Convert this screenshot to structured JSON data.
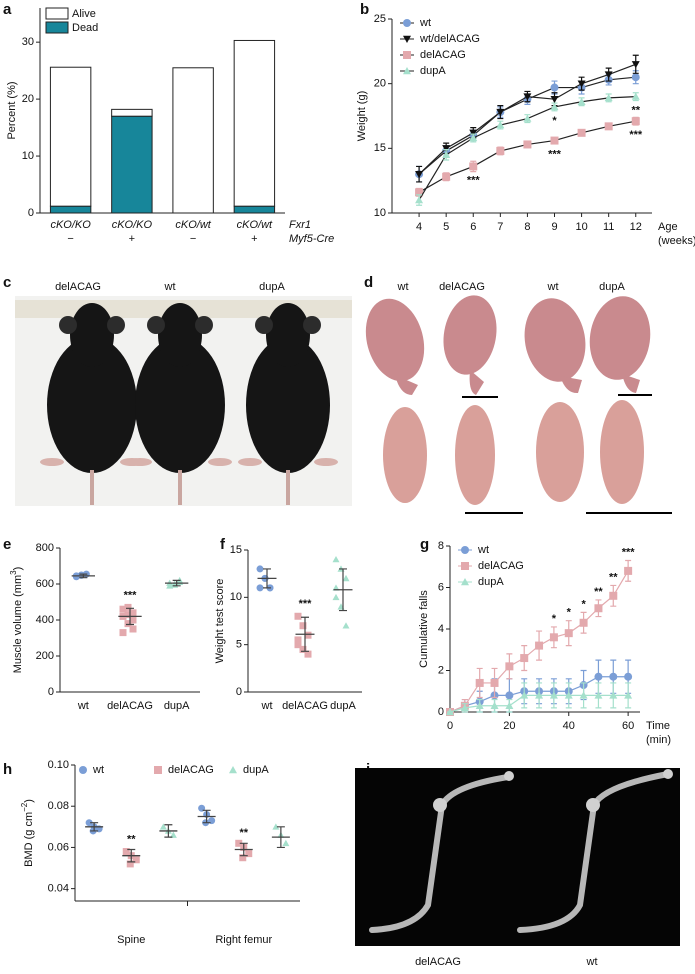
{
  "chart_data": [
    {
      "letter": "a",
      "type": "bar",
      "stacked": true,
      "ylabel": "Percent (%)",
      "categories": [
        "cKO/KO",
        "cKO/KO",
        "cKO/wt",
        "cKO/wt"
      ],
      "categories2": [
        "−",
        "+",
        "−",
        "+"
      ],
      "category_titles": [
        "Fxr1",
        "Myf5-Cre"
      ],
      "series": [
        {
          "name": "Alive",
          "color": "#ffffff",
          "values": [
            24.4,
            1.2,
            25.5,
            29.1
          ]
        },
        {
          "name": "Dead",
          "color": "#17869a",
          "values": [
            1.2,
            17,
            0,
            1.2
          ]
        }
      ],
      "ylim": [
        0,
        36
      ],
      "yticks": [
        0,
        10,
        20,
        30
      ],
      "legend": "upper left"
    },
    {
      "letter": "b",
      "type": "line",
      "ylabel": "Weight (g)",
      "xlabel": [
        "Age",
        "(weeks)"
      ],
      "x": [
        4,
        5,
        6,
        7,
        8,
        9,
        10,
        11,
        12
      ],
      "xlim": [
        3,
        12.6
      ],
      "xticks": [
        4,
        5,
        6,
        7,
        8,
        9,
        10,
        11,
        12
      ],
      "ylim": [
        10,
        25
      ],
      "yticks": [
        10,
        15,
        20,
        25
      ],
      "line_color": "#222222",
      "legend": "upper left",
      "significance_side": "below",
      "series": [
        {
          "name": "wt",
          "color": "#7b9ed6",
          "marker": "circle",
          "values": [
            13,
            14.8,
            16,
            17.8,
            18.8,
            19.7,
            19.7,
            20.3,
            20.5
          ],
          "errors": [
            0.6,
            0.4,
            0.4,
            0.4,
            0.4,
            0.5,
            0.5,
            0.4,
            0.5
          ]
        },
        {
          "name": "wt/delACAG",
          "color": "#111111",
          "marker": "triangle-down",
          "values": [
            13,
            15,
            16.2,
            17.8,
            19,
            18.8,
            20,
            20.7,
            21.5
          ],
          "errors": [
            0.6,
            0.4,
            0.4,
            0.5,
            0.4,
            0.5,
            0.5,
            0.5,
            0.7
          ]
        },
        {
          "name": "delACAG",
          "color": "#e3a9ad",
          "marker": "square",
          "values": [
            11.6,
            12.8,
            13.6,
            14.8,
            15.3,
            15.6,
            16.2,
            16.7,
            17.1
          ],
          "errors": [
            0.3,
            0.3,
            0.4,
            0.3,
            0.2,
            0.2,
            0.2,
            0.2,
            0.3
          ],
          "significance": [
            null,
            null,
            "***",
            null,
            null,
            "***",
            null,
            null,
            "***"
          ]
        },
        {
          "name": "dupA",
          "color": "#a5e0cc",
          "marker": "triangle-up",
          "values": [
            11,
            14.5,
            15.8,
            16.8,
            17.3,
            18.2,
            18.6,
            18.9,
            19
          ],
          "errors": [
            0.4,
            0.4,
            0.3,
            0.3,
            0.3,
            0.3,
            0.3,
            0.3,
            0.3
          ],
          "significance": [
            null,
            null,
            null,
            null,
            null,
            "*",
            null,
            null,
            "**"
          ]
        }
      ]
    },
    {
      "letter": "e",
      "type": "strip",
      "ylabel": "Muscle volume (mm",
      "ylabel_sup": "3",
      "ylabel_tail": ")",
      "categories": [
        "wt",
        "delACAG",
        "dupA"
      ],
      "colors": [
        "#7b9ed6",
        "#e3a9ad",
        "#a5e0cc"
      ],
      "markers": [
        "circle",
        "square",
        "triangle-up"
      ],
      "points": [
        [
          640,
          650,
          655,
          645,
          648
        ],
        [
          330,
          380,
          400,
          420,
          430,
          440,
          460,
          470,
          350
        ],
        [
          590,
          600,
          610,
          605,
          595,
          620
        ]
      ],
      "means": [
        645,
        420,
        605
      ],
      "errors": [
        10,
        45,
        15
      ],
      "significance": [
        null,
        "***",
        null
      ],
      "ylim": [
        0,
        800
      ],
      "yticks": [
        0,
        200,
        400,
        600,
        800
      ]
    },
    {
      "letter": "f",
      "type": "strip",
      "ylabel": "Weight test score",
      "categories": [
        "wt",
        "delACAG",
        "dupA"
      ],
      "colors": [
        "#7b9ed6",
        "#e3a9ad",
        "#a5e0cc"
      ],
      "markers": [
        "circle",
        "square",
        "triangle-up"
      ],
      "points": [
        [
          13,
          12,
          11,
          11,
          12,
          11
        ],
        [
          8,
          7,
          6,
          5,
          4.5,
          4,
          5.5
        ],
        [
          14,
          13,
          12,
          10,
          9,
          7,
          11
        ]
      ],
      "means": [
        12,
        6.1,
        10.8
      ],
      "errors": [
        1,
        1.8,
        2.2
      ],
      "significance": [
        null,
        "***",
        null
      ],
      "ylim": [
        0,
        15
      ],
      "yticks": [
        0,
        5,
        10,
        15
      ]
    },
    {
      "letter": "g",
      "type": "line",
      "ylabel": "Cumulative falls",
      "xlabel": [
        "Time",
        "(min)"
      ],
      "x": [
        0,
        5,
        10,
        15,
        20,
        25,
        30,
        35,
        40,
        45,
        50,
        55,
        60
      ],
      "xlim": [
        0,
        64
      ],
      "xticks": [
        0,
        20,
        40,
        60
      ],
      "ylim": [
        0,
        8
      ],
      "yticks": [
        0,
        2,
        4,
        6,
        8
      ],
      "legend": "upper left",
      "significance_side": "above",
      "series": [
        {
          "name": "wt",
          "color": "#7b9ed6",
          "marker": "circle",
          "values": [
            0,
            0.3,
            0.5,
            0.8,
            0.8,
            1,
            1,
            1,
            1,
            1.3,
            1.7,
            1.7,
            1.7
          ],
          "errors": [
            0,
            0.3,
            0.5,
            0.8,
            0.8,
            0.6,
            0.6,
            0.6,
            0.6,
            0.7,
            0.8,
            0.8,
            0.8
          ]
        },
        {
          "name": "delACAG",
          "color": "#e3a9ad",
          "marker": "square",
          "values": [
            0,
            0.3,
            1.4,
            1.4,
            2.2,
            2.6,
            3.2,
            3.6,
            3.8,
            4.3,
            5.0,
            5.6,
            6.8
          ],
          "errors": [
            0,
            0.3,
            0.7,
            0.7,
            0.6,
            0.6,
            0.7,
            0.5,
            0.6,
            0.5,
            0.4,
            0.5,
            0.5
          ],
          "significance": [
            null,
            null,
            null,
            null,
            null,
            null,
            null,
            "*",
            "*",
            "*",
            "**",
            "**",
            "***"
          ]
        },
        {
          "name": "dupA",
          "color": "#a5e0cc",
          "marker": "triangle-up",
          "values": [
            0,
            0.2,
            0.3,
            0.3,
            0.3,
            0.8,
            0.8,
            0.8,
            0.8,
            0.8,
            0.8,
            0.8,
            0.8
          ],
          "errors": [
            0,
            0.2,
            0.3,
            0.3,
            0.3,
            0.6,
            0.6,
            0.6,
            0.6,
            0.6,
            0.6,
            0.6,
            0.6
          ]
        }
      ]
    },
    {
      "letter": "h",
      "type": "strip",
      "ylabel": "BMD (g cm",
      "ylabel_sup": "−2",
      "ylabel_tail": ")",
      "groups": [
        "Spine",
        "Right femur"
      ],
      "legend": "top",
      "series": [
        {
          "name": "wt",
          "color": "#7b9ed6",
          "marker": "circle",
          "points": [
            [
              0.072,
              0.07,
              0.069,
              0.068
            ],
            [
              0.079,
              0.076,
              0.073,
              0.072
            ]
          ],
          "means": [
            0.07,
            0.075
          ],
          "errors": [
            0.002,
            0.003
          ]
        },
        {
          "name": "delACAG",
          "color": "#e3a9ad",
          "marker": "square",
          "points": [
            [
              0.058,
              0.056,
              0.054,
              0.052
            ],
            [
              0.062,
              0.06,
              0.057,
              0.055
            ]
          ],
          "means": [
            0.056,
            0.059
          ],
          "errors": [
            0.003,
            0.003
          ],
          "significance": [
            "**",
            "**"
          ]
        },
        {
          "name": "dupA",
          "color": "#a5e0cc",
          "marker": "triangle-up",
          "points": [
            [
              0.07,
              0.068,
              0.066
            ],
            [
              0.07,
              0.066,
              0.062
            ]
          ],
          "means": [
            0.068,
            0.065
          ],
          "errors": [
            0.003,
            0.005
          ]
        }
      ],
      "ylim": [
        0.034,
        0.1
      ],
      "yticks": [
        0.04,
        0.06,
        0.08,
        {
          "value": 0.1,
          "label": "0.10"
        }
      ]
    }
  ],
  "photos": {
    "c": {
      "letter": "c",
      "labels": [
        "delACAG",
        "wt",
        "dupA"
      ]
    },
    "d": {
      "letter": "d",
      "labels": [
        "wt",
        "delACAG",
        "wt",
        "dupA"
      ]
    },
    "i": {
      "letter": "i",
      "labels": [
        "delACAG",
        "wt"
      ]
    }
  }
}
